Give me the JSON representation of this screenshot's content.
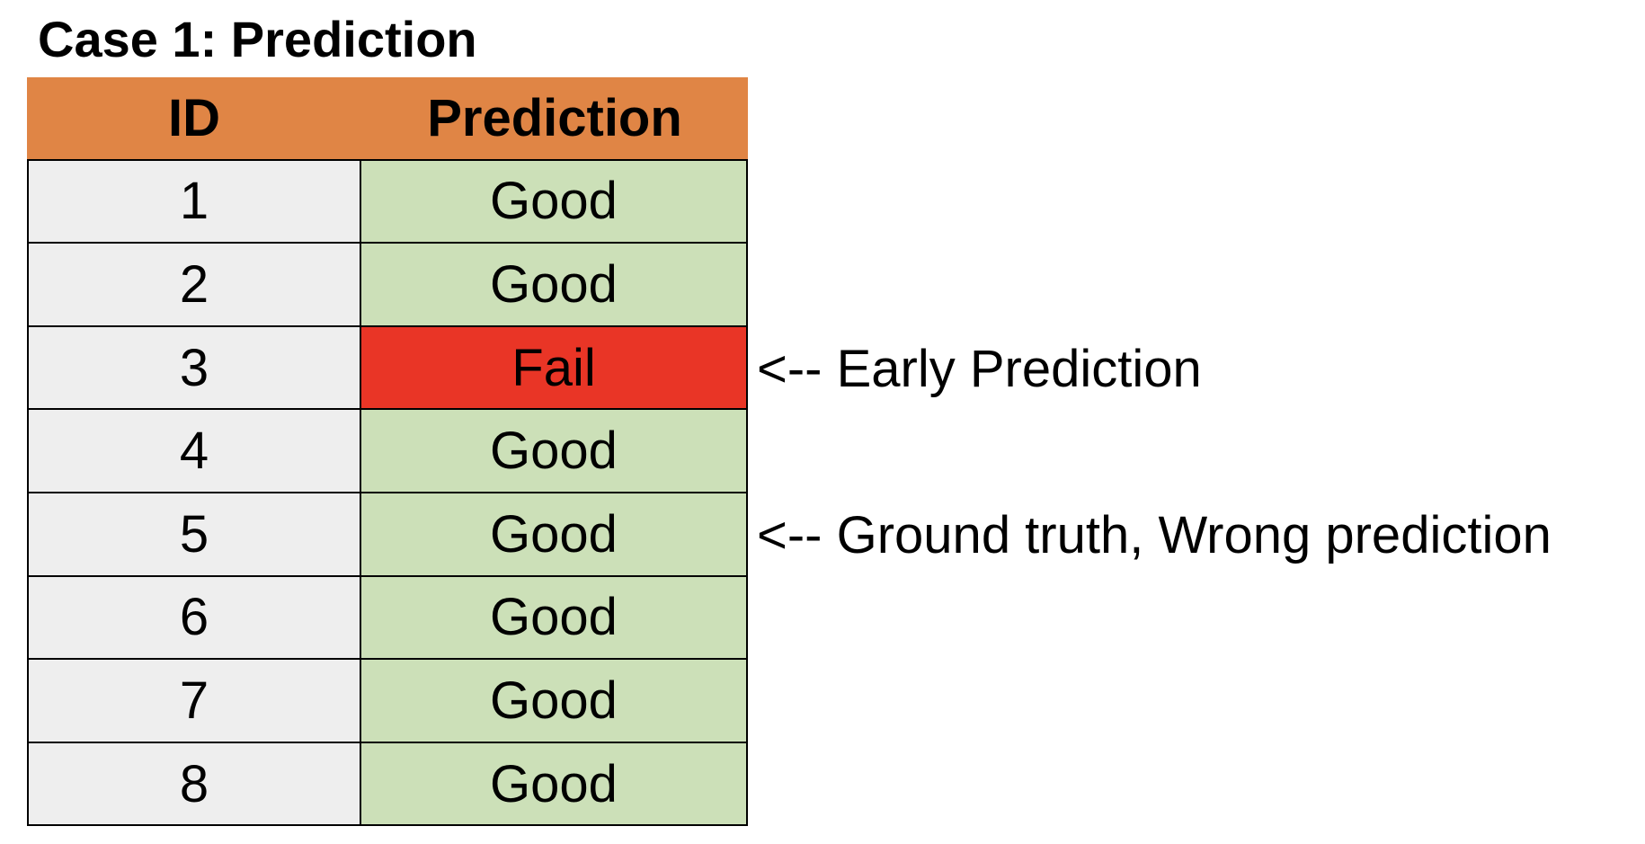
{
  "title": "Case 1: Prediction",
  "table": {
    "headers": {
      "id": "ID",
      "prediction": "Prediction"
    },
    "colors": {
      "header_bg": "#e08545",
      "id_bg": "#eeeeee",
      "good_bg": "#cce0b8",
      "fail_bg": "#e93526"
    },
    "rows": [
      {
        "id": "1",
        "prediction": "Good",
        "status": "good"
      },
      {
        "id": "2",
        "prediction": "Good",
        "status": "good"
      },
      {
        "id": "3",
        "prediction": "Fail",
        "status": "fail"
      },
      {
        "id": "4",
        "prediction": "Good",
        "status": "good"
      },
      {
        "id": "5",
        "prediction": "Good",
        "status": "good"
      },
      {
        "id": "6",
        "prediction": "Good",
        "status": "good"
      },
      {
        "id": "7",
        "prediction": "Good",
        "status": "good"
      },
      {
        "id": "8",
        "prediction": "Good",
        "status": "good"
      }
    ]
  },
  "annotations": [
    {
      "row_id": "3",
      "text": "<-- Early Prediction"
    },
    {
      "row_id": "5",
      "text": "<-- Ground truth, Wrong prediction"
    }
  ]
}
